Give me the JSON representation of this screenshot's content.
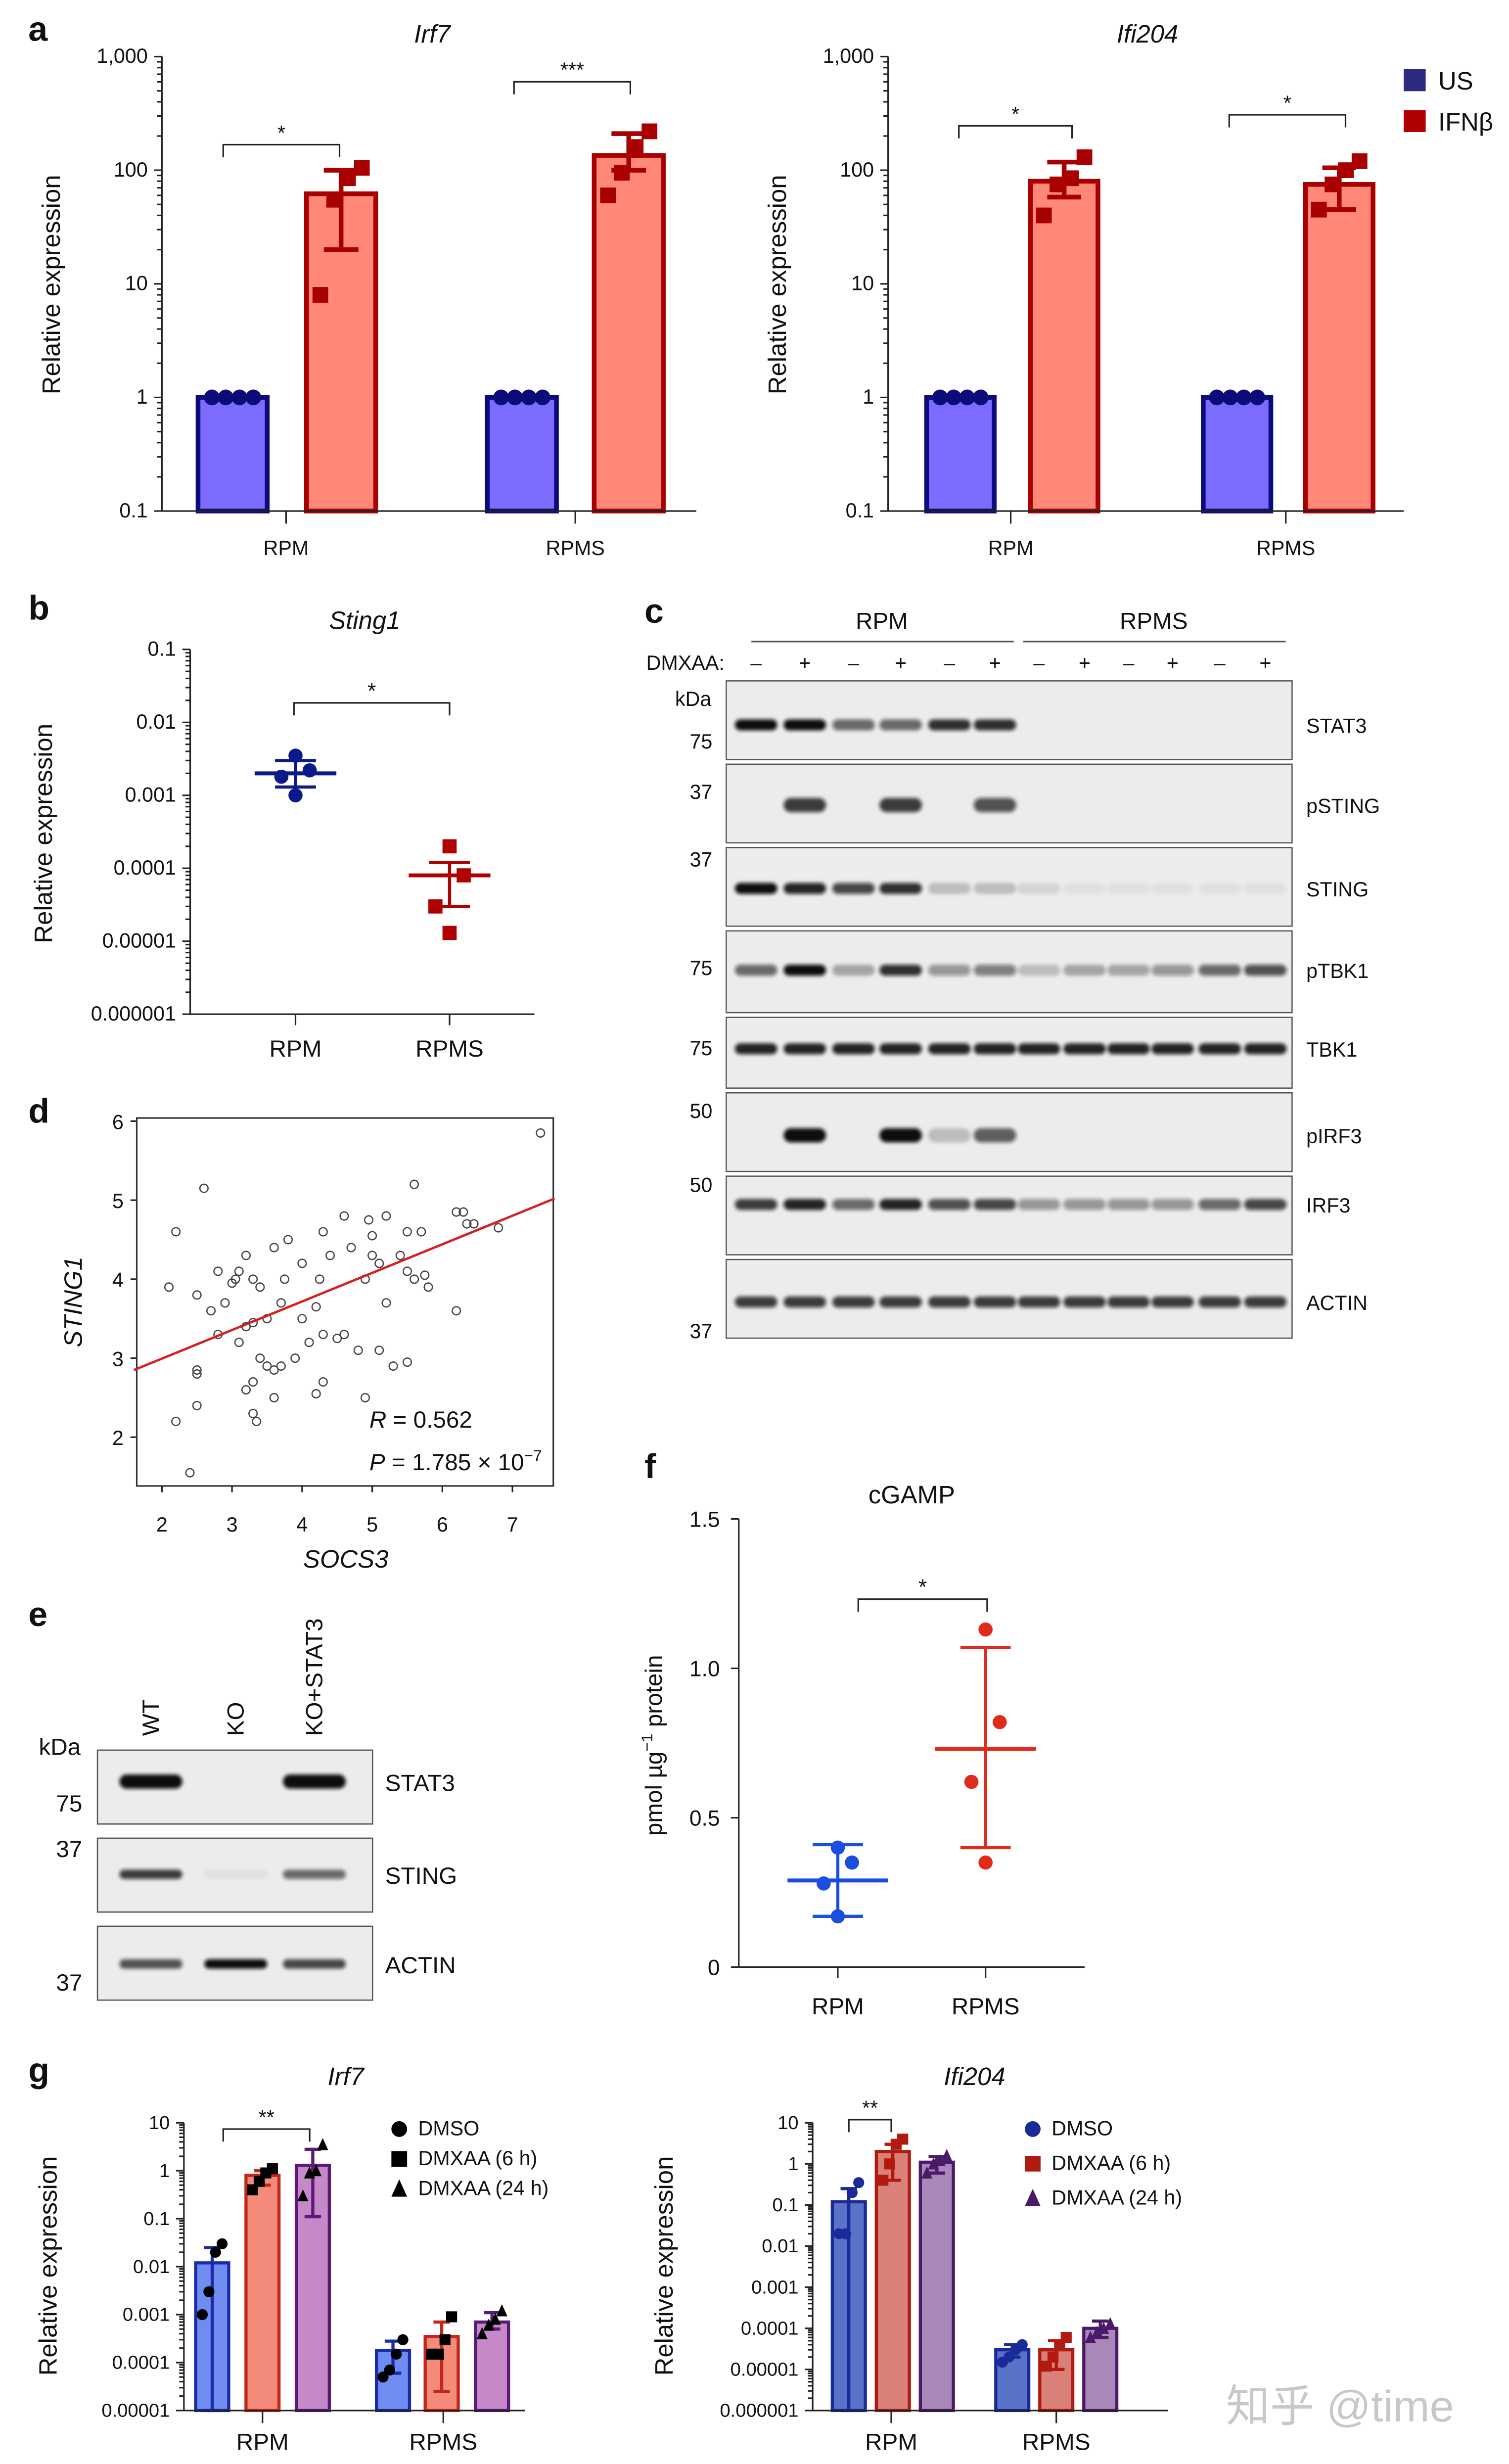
{
  "panel_labels": {
    "a": "a",
    "b": "b",
    "c": "c",
    "d": "d",
    "e": "e",
    "f": "f",
    "g": "g"
  },
  "watermark": "知乎 @time",
  "chart_data": [
    {
      "id": "a-irf7",
      "type": "bar",
      "title": "Irf7",
      "ylabel": "Relative expression",
      "yscale": "log",
      "ylim": [
        0.1,
        1000
      ],
      "yticks": [
        "0.1",
        "1",
        "10",
        "100",
        "1,000"
      ],
      "categories": [
        "RPM",
        "RPMS"
      ],
      "series": [
        {
          "name": "US",
          "color": "#0b0b7a",
          "fill": "#7b6cff",
          "marker": "circle",
          "values": [
            1,
            1
          ],
          "error": [
            [
              1,
              1
            ],
            [
              1,
              1
            ]
          ],
          "points": [
            [
              1,
              1,
              1,
              1
            ],
            [
              1,
              1,
              1,
              1
            ]
          ]
        },
        {
          "name": "IFNβ",
          "color": "#a80000",
          "fill": "#ff8878",
          "marker": "square",
          "values": [
            62,
            135
          ],
          "error": [
            [
              20,
              100
            ],
            [
              100,
              210
            ]
          ],
          "points": [
            [
              8,
              55,
              85,
              105
            ],
            [
              60,
              95,
              160,
              220
            ]
          ]
        }
      ],
      "significance": [
        "*",
        "***"
      ]
    },
    {
      "id": "a-ifi204",
      "type": "bar",
      "title": "Ifi204",
      "ylabel": "Relative expression",
      "yscale": "log",
      "ylim": [
        0.1,
        1000
      ],
      "yticks": [
        "0.1",
        "1",
        "10",
        "100",
        "1,000"
      ],
      "categories": [
        "RPM",
        "RPMS"
      ],
      "series": [
        {
          "name": "US",
          "color": "#0b0b7a",
          "fill": "#7b6cff",
          "marker": "circle",
          "values": [
            1,
            1
          ],
          "error": [
            [
              1,
              1
            ],
            [
              1,
              1
            ]
          ],
          "points": [
            [
              1,
              1,
              1,
              1
            ],
            [
              1,
              1,
              1,
              1
            ]
          ]
        },
        {
          "name": "IFNβ",
          "color": "#a80000",
          "fill": "#ff8878",
          "marker": "square",
          "values": [
            80,
            75
          ],
          "error": [
            [
              58,
              118
            ],
            [
              45,
              105
            ]
          ],
          "points": [
            [
              40,
              75,
              85,
              130
            ],
            [
              45,
              75,
              100,
              120
            ]
          ]
        }
      ],
      "significance": [
        "*",
        "*"
      ],
      "legend": {
        "placement": "right",
        "entries": [
          {
            "label": "US",
            "color": "#2b2a7e"
          },
          {
            "label": "IFNβ",
            "color": "#b00000"
          }
        ]
      }
    },
    {
      "id": "b-sting1",
      "type": "scatter",
      "title": "Sting1",
      "ylabel": "Relative expression",
      "yscale": "log",
      "ylim": [
        1e-06,
        0.1
      ],
      "yticks": [
        "0.000001",
        "0.00001",
        "0.0001",
        "0.001",
        "0.01",
        "0.1"
      ],
      "categories": [
        "RPM",
        "RPMS"
      ],
      "groups": [
        {
          "color": "#0a1a8a",
          "mean": 0.002,
          "error": [
            0.0013,
            0.003
          ],
          "points": [
            0.001,
            0.0018,
            0.0022,
            0.0035
          ]
        },
        {
          "color": "#b00000",
          "mean": 8e-05,
          "error": [
            3e-05,
            0.00012
          ],
          "points": [
            1.3e-05,
            3e-05,
            8e-05,
            0.0002
          ]
        }
      ],
      "significance": [
        "*"
      ]
    },
    {
      "id": "d-correlation",
      "type": "scatter",
      "xlabel": "SOCS3",
      "ylabel": "STING1",
      "xlim": [
        1.6,
        7.6
      ],
      "ylim": [
        1.4,
        6.1
      ],
      "xticks": [
        "2",
        "3",
        "4",
        "5",
        "6",
        "7"
      ],
      "yticks": [
        "2",
        "3",
        "4",
        "5",
        "6"
      ],
      "line_color": "#d42020",
      "fit": {
        "x": [
          1.6,
          7.6
        ],
        "y": [
          2.85,
          5.02
        ]
      },
      "stats": {
        "r_label": "R",
        "r_value": " = 0.562",
        "p_label": "P",
        "p_value": " = 1.785 × 10",
        "p_exp": "−7"
      },
      "points": [
        [
          2.2,
          2.2
        ],
        [
          2.4,
          1.55
        ],
        [
          2.5,
          2.4
        ],
        [
          2.1,
          3.9
        ],
        [
          2.2,
          4.6
        ],
        [
          2.5,
          3.8
        ],
        [
          2.6,
          5.15
        ],
        [
          2.5,
          2.8
        ],
        [
          2.5,
          2.85
        ],
        [
          2.8,
          3.3
        ],
        [
          2.7,
          3.6
        ],
        [
          2.8,
          4.1
        ],
        [
          3.0,
          3.95
        ],
        [
          3.05,
          4.0
        ],
        [
          3.1,
          4.1
        ],
        [
          2.9,
          3.7
        ],
        [
          3.2,
          3.4
        ],
        [
          3.2,
          4.3
        ],
        [
          3.3,
          4.0
        ],
        [
          3.3,
          3.45
        ],
        [
          3.1,
          3.2
        ],
        [
          3.4,
          3.0
        ],
        [
          3.3,
          2.7
        ],
        [
          3.4,
          3.9
        ],
        [
          3.5,
          3.5
        ],
        [
          3.5,
          2.9
        ],
        [
          3.3,
          2.3
        ],
        [
          3.35,
          2.2
        ],
        [
          3.2,
          2.6
        ],
        [
          3.6,
          2.85
        ],
        [
          3.6,
          2.5
        ],
        [
          3.7,
          2.9
        ],
        [
          3.7,
          3.7
        ],
        [
          3.75,
          4.0
        ],
        [
          3.6,
          4.4
        ],
        [
          3.8,
          4.5
        ],
        [
          3.9,
          3.0
        ],
        [
          4.0,
          4.2
        ],
        [
          4.0,
          3.5
        ],
        [
          4.2,
          3.65
        ],
        [
          4.1,
          3.2
        ],
        [
          4.3,
          3.3
        ],
        [
          4.2,
          2.55
        ],
        [
          4.25,
          4.0
        ],
        [
          4.3,
          4.6
        ],
        [
          4.3,
          2.7
        ],
        [
          4.5,
          3.25
        ],
        [
          4.4,
          4.3
        ],
        [
          4.6,
          3.3
        ],
        [
          4.6,
          4.8
        ],
        [
          4.7,
          4.4
        ],
        [
          4.8,
          3.1
        ],
        [
          4.9,
          4.0
        ],
        [
          4.9,
          2.5
        ],
        [
          5.0,
          4.3
        ],
        [
          5.0,
          4.55
        ],
        [
          4.95,
          4.75
        ],
        [
          5.1,
          4.2
        ],
        [
          5.2,
          4.8
        ],
        [
          5.1,
          3.1
        ],
        [
          5.2,
          3.7
        ],
        [
          5.3,
          2.9
        ],
        [
          5.4,
          4.3
        ],
        [
          5.5,
          2.95
        ],
        [
          5.5,
          4.6
        ],
        [
          5.6,
          5.2
        ],
        [
          5.5,
          4.1
        ],
        [
          5.6,
          4.0
        ],
        [
          5.7,
          4.6
        ],
        [
          5.75,
          4.05
        ],
        [
          5.8,
          3.9
        ],
        [
          6.2,
          4.85
        ],
        [
          6.3,
          4.85
        ],
        [
          6.35,
          4.7
        ],
        [
          6.2,
          3.6
        ],
        [
          6.45,
          4.7
        ],
        [
          6.8,
          4.65
        ],
        [
          7.4,
          5.85
        ]
      ]
    },
    {
      "id": "f-cgamp",
      "type": "scatter",
      "title": "cGAMP",
      "ylabel": "pmol µg",
      "ylabel_sup": "−1",
      "ylabel_tail": " protein",
      "yscale": "linear",
      "ylim": [
        0,
        1.5
      ],
      "yticks": [
        "0",
        "0.5",
        "1.0",
        "1.5"
      ],
      "categories": [
        "RPM",
        "RPMS"
      ],
      "groups": [
        {
          "color": "#1a4de0",
          "mean": 0.29,
          "error": [
            0.17,
            0.41
          ],
          "points": [
            0.17,
            0.28,
            0.35,
            0.4
          ]
        },
        {
          "color": "#e02a1a",
          "mean": 0.73,
          "error": [
            0.4,
            1.07
          ],
          "points": [
            0.35,
            0.62,
            0.82,
            1.13
          ]
        }
      ],
      "significance": [
        "*"
      ]
    },
    {
      "id": "g-irf7",
      "type": "bar",
      "title": "Irf7",
      "ylabel": "Relative expression",
      "yscale": "log",
      "ylim": [
        1e-05,
        10
      ],
      "yticks": [
        "0.00001",
        "0.0001",
        "0.001",
        "0.01",
        "0.1",
        "1",
        "10"
      ],
      "categories": [
        "RPM",
        "RPMS"
      ],
      "series": [
        {
          "name": "DMSO",
          "color": "#1a2aa8",
          "fill": "#6f8cf0",
          "marker": "circle",
          "point_color": "#000",
          "values": [
            0.012,
            0.00018
          ],
          "error": [
            [
              1e-05,
              0.025
            ],
            [
              6e-05,
              0.00028
            ]
          ],
          "points": [
            [
              0.001,
              0.003,
              0.02,
              0.03
            ],
            [
              5e-05,
              7e-05,
              0.00015,
              0.0003
            ]
          ]
        },
        {
          "name": "DMXAA (6 h)",
          "color": "#c0281a",
          "fill": "#f48b7a",
          "marker": "square",
          "point_color": "#000",
          "values": [
            0.8,
            0.00035
          ],
          "error": [
            [
              0.5,
              1.0
            ],
            [
              2.5e-05,
              0.0007
            ]
          ],
          "points": [
            [
              0.4,
              0.6,
              0.9,
              1.1
            ],
            [
              0.00015,
              0.00015,
              0.0003,
              0.0009
            ]
          ]
        },
        {
          "name": "DMXAA (24 h)",
          "color": "#5a1a78",
          "fill": "#c688c8",
          "marker": "triangle",
          "point_color": "#000",
          "values": [
            1.3,
            0.0007
          ],
          "error": [
            [
              0.11,
              2.8
            ],
            [
              0.0005,
              0.0011
            ]
          ],
          "points": [
            [
              0.3,
              0.9,
              1.0,
              3.5
            ],
            [
              0.0004,
              0.0006,
              0.0008,
              0.0012
            ]
          ]
        }
      ],
      "significance": [
        "**"
      ],
      "legend": {
        "placement": "top-right",
        "entries": [
          {
            "label": "DMSO",
            "color": "#000"
          },
          {
            "label": "DMXAA (6 h)",
            "color": "#000"
          },
          {
            "label": "DMXAA (24 h)",
            "color": "#000"
          }
        ]
      }
    },
    {
      "id": "g-ifi204",
      "type": "bar",
      "title": "Ifi204",
      "ylabel": "Relative expression",
      "yscale": "log",
      "ylim": [
        1e-06,
        10
      ],
      "yticks": [
        "0.000001",
        "0.00001",
        "0.0001",
        "0.001",
        "0.01",
        "0.1",
        "1",
        "10"
      ],
      "categories": [
        "RPM",
        "RPMS"
      ],
      "series": [
        {
          "name": "DMSO",
          "color": "#1a2a98",
          "fill": "#5a72c8",
          "marker": "circle",
          "point_color": "#1a2a98",
          "values": [
            0.12,
            3e-05
          ],
          "error": [
            [
              1e-06,
              0.25
            ],
            [
              2e-05,
              4e-05
            ]
          ],
          "points": [
            [
              0.02,
              0.02,
              0.2,
              0.35
            ],
            [
              1.5e-05,
              2e-05,
              3e-05,
              4e-05
            ]
          ]
        },
        {
          "name": "DMXAA (6 h)",
          "color": "#b01a10",
          "fill": "#d98078",
          "marker": "square",
          "point_color": "#b01a10",
          "values": [
            2,
            3e-05
          ],
          "error": [
            [
              0.4,
              3
            ],
            [
              1e-05,
              5e-05
            ]
          ],
          "points": [
            [
              0.4,
              1,
              3,
              4
            ],
            [
              1.2e-05,
              2e-05,
              4e-05,
              6e-05
            ]
          ]
        },
        {
          "name": "DMXAA (24 h)",
          "color": "#4a1a68",
          "fill": "#a888b8",
          "marker": "triangle",
          "point_color": "#4a1a68",
          "values": [
            1.1,
            0.0001
          ],
          "error": [
            [
              0.6,
              1.5
            ],
            [
              6e-05,
              0.00015
            ]
          ],
          "points": [
            [
              0.6,
              1,
              1.2,
              1.6
            ],
            [
              6e-05,
              8e-05,
              0.0001,
              0.00013
            ]
          ]
        }
      ],
      "significance": [
        "**"
      ],
      "legend": {
        "placement": "top-right",
        "entries": [
          {
            "label": "DMSO",
            "color": "#1a2a98"
          },
          {
            "label": "DMXAA (6 h)",
            "color": "#b01a10"
          },
          {
            "label": "DMXAA (24 h)",
            "color": "#4a1a68"
          }
        ]
      }
    }
  ],
  "blot_c": {
    "groups": [
      "RPM",
      "RPMS"
    ],
    "treatment_label": "DMXAA:",
    "lanes": [
      "–",
      "+",
      "–",
      "+",
      "–",
      "+",
      "–",
      "+",
      "–",
      "+",
      "–",
      "+"
    ],
    "kda_label": "kDa",
    "rows": [
      {
        "label": "STAT3",
        "marker": "75",
        "intensity": [
          1,
          1,
          0.6,
          0.6,
          0.85,
          0.85,
          0,
          0,
          0,
          0,
          0,
          0
        ]
      },
      {
        "label": "pSTING",
        "marker": "37",
        "intensity": [
          0,
          0.8,
          0,
          0.8,
          0,
          0.7,
          0,
          0,
          0,
          0,
          0,
          0
        ]
      },
      {
        "label": "STING",
        "marker": "37",
        "intensity": [
          1,
          0.9,
          0.75,
          0.85,
          0.2,
          0.2,
          0.1,
          0.05,
          0.05,
          0.05,
          0.05,
          0.05
        ]
      },
      {
        "label": "pTBK1",
        "marker": "75",
        "intensity": [
          0.6,
          1,
          0.3,
          0.85,
          0.4,
          0.5,
          0.2,
          0.3,
          0.3,
          0.4,
          0.6,
          0.7
        ]
      },
      {
        "label": "TBK1",
        "marker": "75",
        "intensity": [
          0.9,
          0.9,
          0.9,
          0.9,
          0.9,
          0.9,
          0.9,
          0.9,
          0.9,
          0.9,
          0.9,
          0.9
        ]
      },
      {
        "label": "pIRF3",
        "marker": "50",
        "intensity": [
          0,
          1,
          0,
          1,
          0.2,
          0.65,
          0,
          0,
          0,
          0,
          0,
          0
        ]
      },
      {
        "label": "IRF3",
        "marker": "50",
        "intensity": [
          0.8,
          0.9,
          0.6,
          0.9,
          0.7,
          0.75,
          0.4,
          0.4,
          0.4,
          0.4,
          0.6,
          0.75
        ]
      },
      {
        "label": "ACTIN",
        "marker": "37",
        "intensity": [
          0.8,
          0.8,
          0.8,
          0.8,
          0.8,
          0.8,
          0.8,
          0.8,
          0.8,
          0.8,
          0.8,
          0.8
        ]
      }
    ]
  },
  "blot_e": {
    "lanes": [
      "WT",
      "KO",
      "KO+STAT3"
    ],
    "kda_label": "kDa",
    "rows": [
      {
        "label": "STAT3",
        "marker": "75",
        "intensity": [
          1,
          0,
          1
        ]
      },
      {
        "label": "STING",
        "marker": "37",
        "intensity": [
          0.8,
          0.05,
          0.6
        ]
      },
      {
        "label": "ACTIN",
        "marker": "37",
        "intensity": [
          0.7,
          1,
          0.75
        ]
      }
    ]
  }
}
